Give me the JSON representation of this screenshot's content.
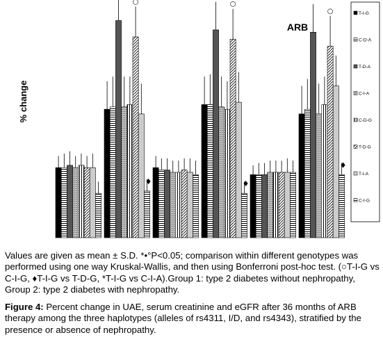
{
  "chart_data": {
    "type": "bar",
    "title": "ARB",
    "ylabel": "% change",
    "xlabel": "",
    "categories": [
      "",
      "",
      "",
      "",
      "",
      ""
    ],
    "ylim": [
      0,
      100
    ],
    "legend_position": "right",
    "series": [
      {
        "name": "T-I-G",
        "values": [
          30,
          55,
          30,
          57,
          27,
          53
        ],
        "errors": [
          5,
          12,
          5,
          12,
          4,
          12
        ],
        "color": "#000000",
        "pattern": "solid"
      },
      {
        "name": "C-D-A",
        "values": [
          30,
          56,
          29,
          57,
          27,
          55
        ],
        "errors": [
          6,
          13,
          5,
          13,
          5,
          13
        ],
        "color": "#ffffff",
        "pattern": "hstripe"
      },
      {
        "name": "T-D-A",
        "values": [
          31,
          93,
          29,
          89,
          27,
          88
        ],
        "errors": [
          6,
          12,
          5,
          12,
          5,
          12
        ],
        "color": "#555555",
        "pattern": "solid"
      },
      {
        "name": "C-I-A",
        "values": [
          30,
          56,
          28,
          56,
          28,
          53
        ],
        "errors": [
          5,
          13,
          5,
          13,
          5,
          13
        ],
        "color": "#aaaaaa",
        "pattern": "dots"
      },
      {
        "name": "C-D-G",
        "values": [
          31,
          57,
          28,
          55,
          28,
          57
        ],
        "errors": [
          5,
          12,
          5,
          12,
          5,
          12
        ],
        "color": "#ffffff",
        "pattern": "vstripe"
      },
      {
        "name": "T-D-G",
        "values": [
          30,
          86,
          29,
          85,
          28,
          82
        ],
        "errors": [
          5,
          13,
          5,
          13,
          5,
          13
        ],
        "color": "#ffffff",
        "pattern": "diag"
      },
      {
        "name": "T-I-A",
        "values": [
          30,
          53,
          28,
          58,
          28,
          65
        ],
        "errors": [
          6,
          13,
          6,
          13,
          6,
          13
        ],
        "color": "#cccccc",
        "pattern": "solid"
      },
      {
        "name": "C-I-G",
        "values": [
          19,
          20,
          27,
          19,
          28,
          27
        ],
        "errors": [
          5,
          5,
          6,
          5,
          5,
          5
        ],
        "color": "#dddddd",
        "pattern": "hstripe"
      }
    ],
    "annotations": [
      {
        "text": "*",
        "category": 1,
        "series": 2
      },
      {
        "text": "○",
        "category": 1,
        "series": 5
      },
      {
        "text": "♦",
        "category": 1,
        "series": 7
      },
      {
        "text": "*",
        "category": 3,
        "series": 2
      },
      {
        "text": "○",
        "category": 3,
        "series": 5
      },
      {
        "text": "♦",
        "category": 3,
        "series": 7
      },
      {
        "text": "*",
        "category": 5,
        "series": 2
      },
      {
        "text": "○",
        "category": 5,
        "series": 5
      },
      {
        "text": "♦",
        "category": 5,
        "series": 7
      }
    ]
  },
  "notes": "Values are given as mean ± S.D. *•°P<0.05; comparison within different genotypes was performed using one way Kruskal-Wallis, and then using Bonferroni post-hoc test. (○T-I-G vs C-I-G, ♦T-I-G vs T-D-G, *T-I-G vs C-I-A).Group 1: type 2 diabetes without nephropathy, Group 2: type 2 diabetes with nephropathy.",
  "caption": {
    "label": "Figure 4:",
    "text": " Percent change in UAE, serum creatinine and eGFR after 36 months of ARB therapy among the three haplotypes (alleles of rs4311, I/D, and rs4343), stratified by the presence or absence of nephropathy."
  }
}
